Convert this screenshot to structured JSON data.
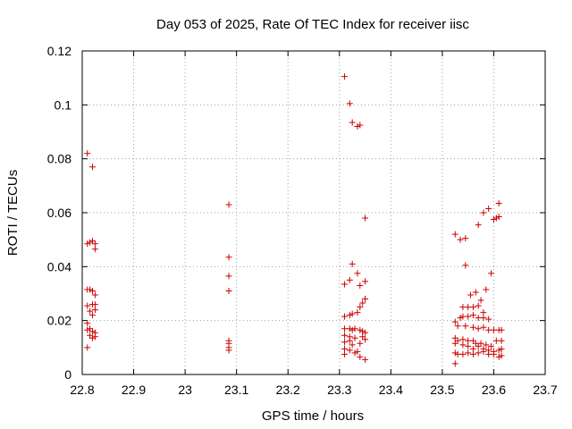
{
  "chart_data": {
    "type": "scatter",
    "title": "Day 053 of 2025, Rate Of TEC Index for receiver iisc",
    "xlabel": "GPS time / hours",
    "ylabel": "ROTI / TECUs",
    "xlim": [
      22.8,
      23.7
    ],
    "ylim": [
      0,
      0.12
    ],
    "xticks": [
      "22.8",
      "22.9",
      "23",
      "23.1",
      "23.2",
      "23.3",
      "23.4",
      "23.5",
      "23.6",
      "23.7"
    ],
    "yticks": [
      "0",
      "0.02",
      "0.04",
      "0.06",
      "0.08",
      "0.1",
      "0.12"
    ],
    "grid": true,
    "marker": "+",
    "color": "#cc0000",
    "points": [
      [
        22.81,
        0.082
      ],
      [
        22.82,
        0.077
      ],
      [
        22.81,
        0.0485
      ],
      [
        22.815,
        0.049
      ],
      [
        22.82,
        0.0495
      ],
      [
        22.825,
        0.0485
      ],
      [
        22.825,
        0.0465
      ],
      [
        22.81,
        0.0315
      ],
      [
        22.815,
        0.0315
      ],
      [
        22.82,
        0.031
      ],
      [
        22.825,
        0.0295
      ],
      [
        22.81,
        0.0255
      ],
      [
        22.82,
        0.026
      ],
      [
        22.825,
        0.026
      ],
      [
        22.815,
        0.0235
      ],
      [
        22.825,
        0.024
      ],
      [
        22.82,
        0.022
      ],
      [
        22.81,
        0.019
      ],
      [
        22.815,
        0.017
      ],
      [
        22.81,
        0.0165
      ],
      [
        22.82,
        0.016
      ],
      [
        22.825,
        0.0155
      ],
      [
        22.815,
        0.0145
      ],
      [
        22.825,
        0.014
      ],
      [
        22.82,
        0.0135
      ],
      [
        22.81,
        0.01
      ],
      [
        23.085,
        0.063
      ],
      [
        23.085,
        0.0435
      ],
      [
        23.085,
        0.0365
      ],
      [
        23.085,
        0.031
      ],
      [
        23.085,
        0.0125
      ],
      [
        23.085,
        0.0115
      ],
      [
        23.085,
        0.01
      ],
      [
        23.085,
        0.009
      ],
      [
        23.31,
        0.1105
      ],
      [
        23.32,
        0.1005
      ],
      [
        23.325,
        0.0935
      ],
      [
        23.335,
        0.092
      ],
      [
        23.34,
        0.0925
      ],
      [
        23.35,
        0.058
      ],
      [
        23.325,
        0.041
      ],
      [
        23.335,
        0.0375
      ],
      [
        23.31,
        0.0335
      ],
      [
        23.32,
        0.035
      ],
      [
        23.34,
        0.033
      ],
      [
        23.35,
        0.0345
      ],
      [
        23.35,
        0.028
      ],
      [
        23.345,
        0.0265
      ],
      [
        23.34,
        0.025
      ],
      [
        23.335,
        0.023
      ],
      [
        23.325,
        0.0225
      ],
      [
        23.32,
        0.022
      ],
      [
        23.31,
        0.0215
      ],
      [
        23.31,
        0.017
      ],
      [
        23.32,
        0.017
      ],
      [
        23.325,
        0.0165
      ],
      [
        23.33,
        0.017
      ],
      [
        23.34,
        0.0165
      ],
      [
        23.345,
        0.016
      ],
      [
        23.35,
        0.0155
      ],
      [
        23.31,
        0.0145
      ],
      [
        23.32,
        0.014
      ],
      [
        23.33,
        0.0135
      ],
      [
        23.345,
        0.014
      ],
      [
        23.35,
        0.013
      ],
      [
        23.31,
        0.012
      ],
      [
        23.32,
        0.0125
      ],
      [
        23.325,
        0.011
      ],
      [
        23.34,
        0.0115
      ],
      [
        23.31,
        0.0095
      ],
      [
        23.32,
        0.009
      ],
      [
        23.335,
        0.0085
      ],
      [
        23.31,
        0.0075
      ],
      [
        23.33,
        0.008
      ],
      [
        23.34,
        0.0065
      ],
      [
        23.35,
        0.0055
      ],
      [
        23.525,
        0.052
      ],
      [
        23.535,
        0.05
      ],
      [
        23.545,
        0.0505
      ],
      [
        23.545,
        0.0405
      ],
      [
        23.57,
        0.0555
      ],
      [
        23.58,
        0.06
      ],
      [
        23.59,
        0.0615
      ],
      [
        23.6,
        0.0575
      ],
      [
        23.605,
        0.058
      ],
      [
        23.61,
        0.0585
      ],
      [
        23.61,
        0.0635
      ],
      [
        23.595,
        0.0375
      ],
      [
        23.585,
        0.0315
      ],
      [
        23.565,
        0.0305
      ],
      [
        23.555,
        0.0295
      ],
      [
        23.575,
        0.0275
      ],
      [
        23.54,
        0.025
      ],
      [
        23.55,
        0.025
      ],
      [
        23.56,
        0.025
      ],
      [
        23.57,
        0.0255
      ],
      [
        23.58,
        0.023
      ],
      [
        23.525,
        0.0195
      ],
      [
        23.535,
        0.021
      ],
      [
        23.54,
        0.0215
      ],
      [
        23.55,
        0.0215
      ],
      [
        23.56,
        0.022
      ],
      [
        23.57,
        0.021
      ],
      [
        23.58,
        0.021
      ],
      [
        23.59,
        0.0205
      ],
      [
        23.53,
        0.018
      ],
      [
        23.545,
        0.018
      ],
      [
        23.56,
        0.0175
      ],
      [
        23.57,
        0.017
      ],
      [
        23.58,
        0.0175
      ],
      [
        23.59,
        0.0165
      ],
      [
        23.6,
        0.0165
      ],
      [
        23.61,
        0.0165
      ],
      [
        23.615,
        0.0165
      ],
      [
        23.525,
        0.0135
      ],
      [
        23.53,
        0.0125
      ],
      [
        23.54,
        0.013
      ],
      [
        23.55,
        0.0125
      ],
      [
        23.56,
        0.0125
      ],
      [
        23.565,
        0.0115
      ],
      [
        23.575,
        0.0115
      ],
      [
        23.585,
        0.011
      ],
      [
        23.595,
        0.0105
      ],
      [
        23.605,
        0.0125
      ],
      [
        23.615,
        0.0125
      ],
      [
        23.525,
        0.0115
      ],
      [
        23.54,
        0.011
      ],
      [
        23.55,
        0.0105
      ],
      [
        23.56,
        0.0095
      ],
      [
        23.57,
        0.0105
      ],
      [
        23.58,
        0.0095
      ],
      [
        23.59,
        0.009
      ],
      [
        23.6,
        0.0085
      ],
      [
        23.61,
        0.009
      ],
      [
        23.615,
        0.0095
      ],
      [
        23.525,
        0.008
      ],
      [
        23.53,
        0.0075
      ],
      [
        23.54,
        0.0075
      ],
      [
        23.55,
        0.008
      ],
      [
        23.56,
        0.0075
      ],
      [
        23.57,
        0.008
      ],
      [
        23.58,
        0.0085
      ],
      [
        23.59,
        0.0075
      ],
      [
        23.6,
        0.0075
      ],
      [
        23.61,
        0.0065
      ],
      [
        23.615,
        0.007
      ],
      [
        23.525,
        0.004
      ]
    ]
  }
}
